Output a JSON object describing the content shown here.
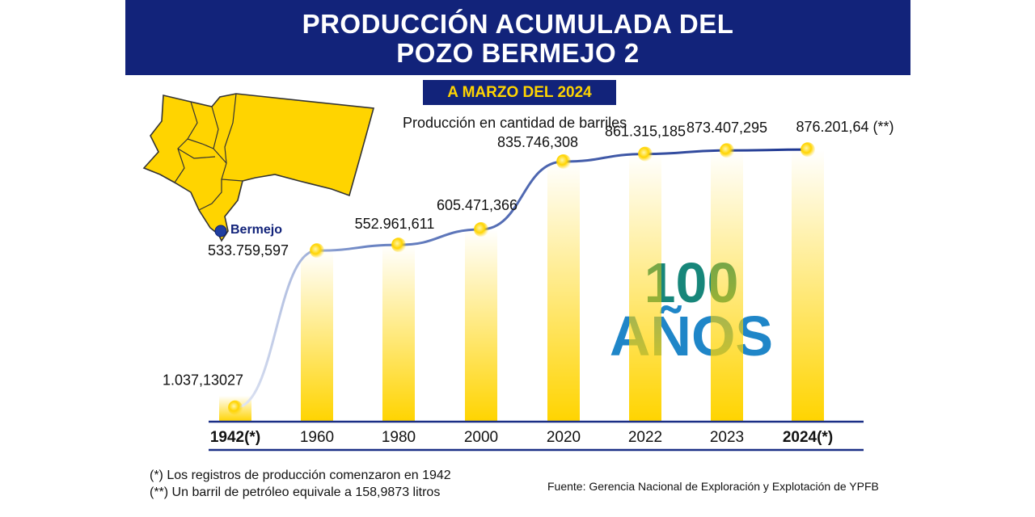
{
  "header": {
    "title_line1": "PRODUCCIÓN ACUMULADA DEL",
    "title_line2": "POZO BERMEJO 2",
    "date_badge": "A MARZO DEL 2024",
    "unit_caption": "Producción en cantidad de barriles"
  },
  "map": {
    "location_label": "Bermejo"
  },
  "watermark": {
    "line1": "100",
    "line2": "AÑOS"
  },
  "colors": {
    "banner": "#12237a",
    "accent_yellow": "#ffd400",
    "line": "#2a4aa0"
  },
  "chart_data": {
    "type": "line",
    "title": "PRODUCCIÓN ACUMULADA DEL POZO BERMEJO 2",
    "subtitle": "A MARZO DEL 2024",
    "ylabel": "Producción en cantidad de barriles",
    "categories": [
      "1942(*)",
      "1960",
      "1980",
      "2000",
      "2020",
      "2022",
      "2023",
      "2024(*)"
    ],
    "bold_categories": [
      "1942(*)",
      "2024(*)"
    ],
    "values": [
      1037130.27,
      533759597,
      552961611,
      605471366,
      835746308,
      861315185,
      873407295,
      876201640
    ],
    "value_labels": [
      "1.037,13027",
      "533.759,597",
      "552.961,611",
      "605.471,366",
      "835.746,308",
      "861.315,185",
      "873.407,295",
      "876.201,64 (**)"
    ],
    "ylim": [
      0,
      1000000000
    ],
    "grid": false,
    "legend": "none"
  },
  "footer": {
    "note1": "(*) Los registros de producción comenzaron en 1942",
    "note2": "(**) Un barril de petróleo equivale a 158,9873 litros",
    "source": "Fuente: Gerencia Nacional de Exploración y Explotación de YPFB"
  }
}
